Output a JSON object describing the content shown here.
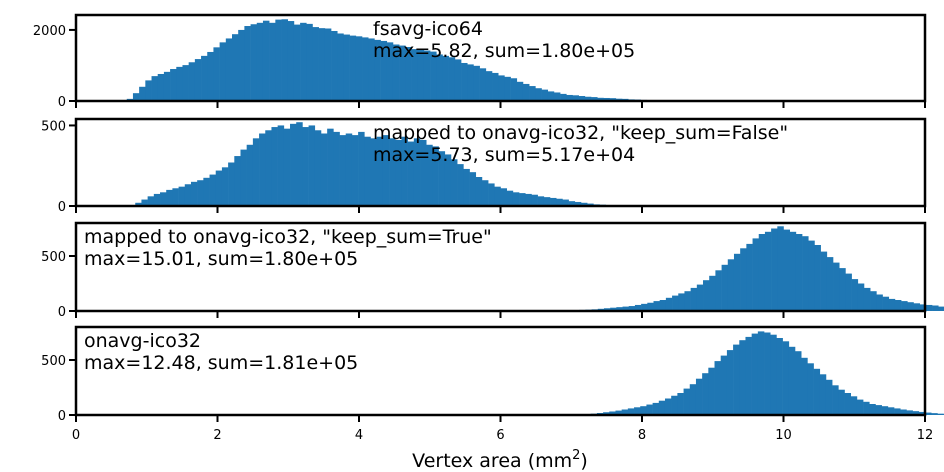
{
  "chart_data": {
    "type": "bar",
    "xlabel": "Vertex area (mm",
    "xlabel_sup": "2",
    "xlabel_end": ")",
    "xlim": [
      0,
      12
    ],
    "xticks": [
      "0",
      "2",
      "4",
      "6",
      "8",
      "10",
      "12"
    ],
    "bar_color": "#1f77b4",
    "bin_width": 0.0875,
    "panels": [
      {
        "annotation_line1": "fsavg-ico64",
        "annotation_line2": "max=5.82, sum=1.80e+05",
        "annotation_position": "top-center",
        "ylim": [
          0,
          2420
        ],
        "yticks": [
          "0",
          "2000"
        ],
        "bin_start": 0.63,
        "counts": [
          20,
          60,
          220,
          400,
          580,
          700,
          760,
          820,
          900,
          960,
          1010,
          1090,
          1180,
          1270,
          1380,
          1510,
          1650,
          1760,
          1880,
          2000,
          2110,
          2160,
          2200,
          2260,
          2200,
          2290,
          2300,
          2250,
          2150,
          2200,
          2170,
          2080,
          2050,
          2040,
          1970,
          1900,
          1870,
          1840,
          1820,
          1790,
          1760,
          1720,
          1690,
          1650,
          1590,
          1560,
          1520,
          1460,
          1440,
          1420,
          1390,
          1310,
          1270,
          1230,
          1170,
          1070,
          1030,
          990,
          920,
          840,
          790,
          720,
          680,
          640,
          540,
          480,
          420,
          360,
          320,
          270,
          240,
          200,
          170,
          160,
          140,
          120,
          110,
          90,
          85,
          80,
          65,
          60,
          45,
          40,
          30,
          25,
          15,
          10,
          5
        ]
      },
      {
        "annotation_line1": "mapped to onavg-ico32, \"keep_sum=False\"",
        "annotation_line2": "max=5.73, sum=5.17e+04",
        "annotation_position": "top-center",
        "ylim": [
          0,
          540
        ],
        "yticks": [
          "0",
          "500"
        ],
        "bin_start": 0.75,
        "counts": [
          6,
          20,
          40,
          60,
          75,
          85,
          100,
          110,
          120,
          135,
          150,
          160,
          175,
          195,
          220,
          240,
          270,
          310,
          350,
          380,
          420,
          450,
          470,
          490,
          500,
          480,
          510,
          520,
          490,
          500,
          470,
          450,
          480,
          460,
          440,
          450,
          440,
          460,
          430,
          420,
          430,
          440,
          420,
          410,
          430,
          400,
          420,
          410,
          380,
          370,
          340,
          320,
          290,
          260,
          230,
          210,
          180,
          160,
          140,
          120,
          110,
          95,
          85,
          80,
          75,
          70,
          60,
          55,
          50,
          45,
          40,
          30,
          25,
          20,
          15,
          10,
          8,
          5,
          3
        ]
      },
      {
        "annotation_line1": "mapped to onavg-ico32, \"keep_sum=True\"",
        "annotation_line2": "max=15.01, sum=1.80e+05",
        "annotation_position": "top-left",
        "ylim": [
          0,
          800
        ],
        "yticks": [
          "0",
          "500"
        ],
        "bin_start": 6.85,
        "counts": [
          3,
          5,
          8,
          10,
          12,
          15,
          20,
          25,
          30,
          35,
          40,
          45,
          55,
          65,
          75,
          90,
          100,
          120,
          140,
          160,
          180,
          210,
          240,
          280,
          320,
          370,
          420,
          470,
          520,
          570,
          610,
          660,
          700,
          720,
          750,
          770,
          740,
          720,
          700,
          680,
          640,
          600,
          540,
          490,
          440,
          390,
          340,
          290,
          250,
          210,
          180,
          150,
          130,
          110,
          100,
          90,
          80,
          70,
          60,
          55,
          50,
          40,
          35,
          30,
          25,
          20,
          15,
          12,
          10,
          8,
          6,
          4,
          3,
          2
        ]
      },
      {
        "annotation_line1": "onavg-ico32",
        "annotation_line2": "max=12.48, sum=1.81e+05",
        "annotation_position": "top-left",
        "ylim": [
          0,
          800
        ],
        "yticks": [
          "0",
          "500"
        ],
        "bin_start": 7.1,
        "counts": [
          5,
          8,
          12,
          18,
          25,
          32,
          40,
          50,
          60,
          70,
          80,
          95,
          110,
          130,
          150,
          175,
          200,
          240,
          280,
          330,
          380,
          430,
          490,
          540,
          590,
          640,
          680,
          710,
          740,
          760,
          750,
          730,
          700,
          670,
          620,
          580,
          520,
          470,
          420,
          370,
          320,
          270,
          230,
          200,
          170,
          140,
          120,
          100,
          90,
          80,
          70,
          60,
          50,
          42,
          35,
          28,
          22,
          17,
          12,
          9,
          6,
          4,
          2
        ]
      }
    ]
  }
}
